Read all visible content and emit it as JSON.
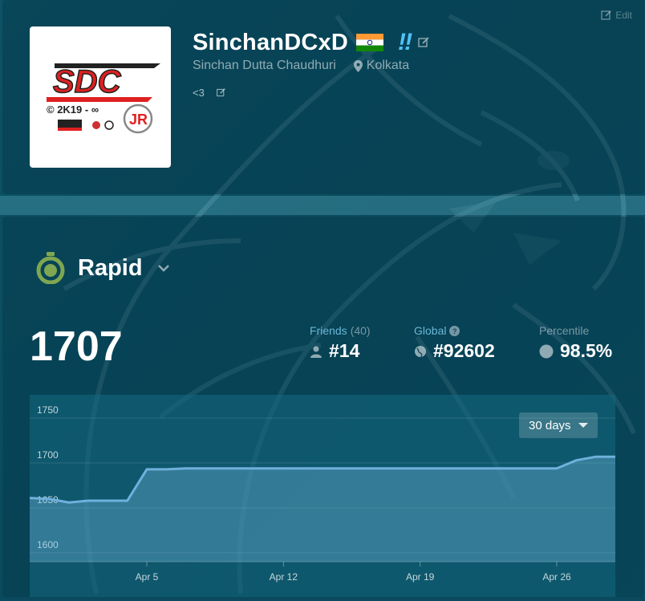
{
  "header": {
    "edit_label": "Edit",
    "username": "SinchanDCxD",
    "real_name": "Sinchan Dutta Chaudhuri",
    "location": "Kolkata",
    "bio": "<3",
    "badge": "‼"
  },
  "avatar_logo": {
    "main": "SDC",
    "line": "© 2K19 - ∞",
    "initials": "JR"
  },
  "mode": {
    "label": "Rapid",
    "rating": "1707"
  },
  "stats": {
    "friends_label": "Friends",
    "friends_count": "(40)",
    "friends_rank": "#14",
    "global_label": "Global",
    "global_rank": "#92602",
    "percentile_label": "Percentile",
    "percentile_value": "98.5%"
  },
  "range_select": {
    "value": "30 days"
  },
  "colors": {
    "accent_blue": "#6ab7d6",
    "line": "#6fb0dc",
    "mode_icon": "#7fa650"
  },
  "chart_data": {
    "type": "area",
    "x": [
      "Mar 30",
      "Mar 31",
      "Apr 1",
      "Apr 2",
      "Apr 3",
      "Apr 4",
      "Apr 5",
      "Apr 6",
      "Apr 7",
      "Apr 8",
      "Apr 9",
      "Apr 10",
      "Apr 11",
      "Apr 12",
      "Apr 13",
      "Apr 14",
      "Apr 15",
      "Apr 16",
      "Apr 17",
      "Apr 18",
      "Apr 19",
      "Apr 20",
      "Apr 21",
      "Apr 22",
      "Apr 23",
      "Apr 24",
      "Apr 25",
      "Apr 26",
      "Apr 27",
      "Apr 28",
      "Apr 29"
    ],
    "values": [
      1661,
      1660,
      1656,
      1658,
      1658,
      1658,
      1693,
      1693,
      1694,
      1694,
      1694,
      1694,
      1694,
      1694,
      1694,
      1694,
      1694,
      1694,
      1694,
      1694,
      1694,
      1694,
      1694,
      1694,
      1694,
      1694,
      1694,
      1694,
      1703,
      1707,
      1707
    ],
    "x_ticks": [
      "Apr 5",
      "Apr 12",
      "Apr 19",
      "Apr 26"
    ],
    "y_ticks": [
      1750,
      1700,
      1650,
      1600
    ],
    "ylim": [
      1590,
      1760
    ],
    "grid": true
  }
}
